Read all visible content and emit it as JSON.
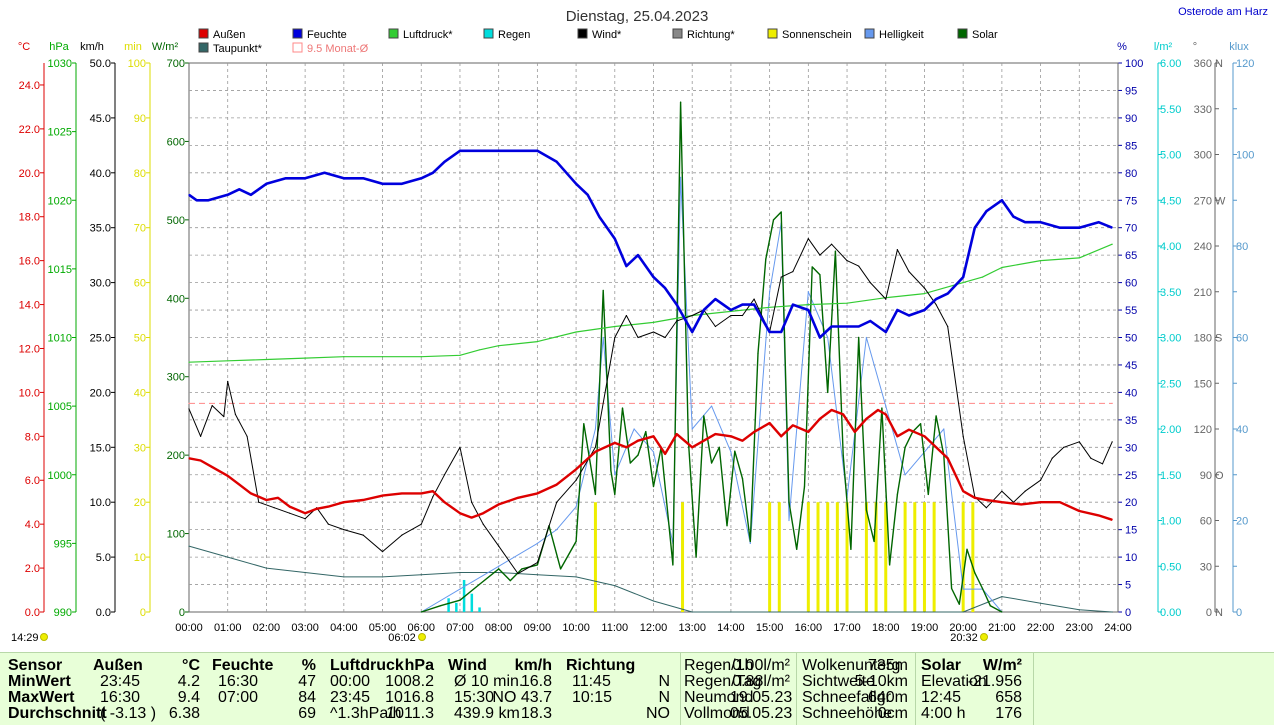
{
  "title": "Dienstag, 25.04.2023",
  "location": "Osterode am Harz",
  "legend": [
    {
      "label": "Außen",
      "color": "#dd0000"
    },
    {
      "label": "Feuchte",
      "color": "#0000dd"
    },
    {
      "label": "Luftdruck*",
      "color": "#33cc33"
    },
    {
      "label": "Regen",
      "color": "#00dddd"
    },
    {
      "label": "Wind*",
      "color": "#000000"
    },
    {
      "label": "Richtung*",
      "color": "#888888"
    },
    {
      "label": "Sonnenschein",
      "color": "#eeee00"
    },
    {
      "label": "Helligkeit",
      "color": "#6699ee"
    },
    {
      "label": "Solar",
      "color": "#006600"
    },
    {
      "label": "Taupunkt*",
      "color": "#336666"
    },
    {
      "label": "9.5 Monat-Ø",
      "color": "#ff8888"
    }
  ],
  "axes": {
    "temp": {
      "unit": "°C",
      "ticks": [
        "24.0",
        "22.0",
        "20.0",
        "18.0",
        "16.0",
        "14.0",
        "12.0",
        "10.0",
        "8.0",
        "6.0",
        "4.0",
        "2.0",
        "0.0"
      ],
      "color": "#dd0000"
    },
    "pressure": {
      "unit": "hPa",
      "ticks": [
        "1030",
        "1025",
        "1020",
        "1015",
        "1010",
        "1005",
        "1000",
        "995",
        "990"
      ],
      "color": "#00aa00"
    },
    "wind": {
      "unit": "km/h",
      "ticks": [
        "50.0",
        "45.0",
        "40.0",
        "35.0",
        "30.0",
        "25.0",
        "20.0",
        "15.0",
        "10.0",
        "5.0",
        "0.0"
      ],
      "color": "#000000"
    },
    "sunmin": {
      "unit": "min",
      "ticks": [
        "100",
        "90",
        "80",
        "70",
        "60",
        "50",
        "40",
        "30",
        "20",
        "10",
        "0"
      ],
      "color": "#dddd00"
    },
    "solar": {
      "unit": "W/m²",
      "ticks": [
        "700",
        "600",
        "500",
        "400",
        "300",
        "200",
        "100",
        "0"
      ],
      "color": "#006600"
    },
    "humidity": {
      "unit": "%",
      "ticks": [
        "100",
        "95",
        "90",
        "85",
        "80",
        "75",
        "70",
        "65",
        "60",
        "55",
        "50",
        "45",
        "40",
        "35",
        "30",
        "25",
        "20",
        "15",
        "10",
        "5",
        "0"
      ],
      "color": "#0000aa"
    },
    "rain": {
      "unit": "l/m²",
      "ticks": [
        "6.00",
        "5.50",
        "5.00",
        "4.50",
        "4.00",
        "3.50",
        "3.00",
        "2.50",
        "2.00",
        "1.50",
        "1.00",
        "0.50",
        "0.00"
      ],
      "color": "#00cccc"
    },
    "direction": {
      "unit": "°",
      "ticks": [
        "360",
        "330",
        "300",
        "270",
        "240",
        "210",
        "180",
        "150",
        "120",
        "90",
        "60",
        "30",
        "0"
      ],
      "color": "#666666"
    },
    "compass": {
      "ticks": [
        "N",
        "",
        "",
        "W",
        "",
        "",
        "S",
        "",
        "",
        "O",
        "",
        "",
        "N"
      ]
    },
    "lux": {
      "unit": "klux",
      "ticks": [
        "120",
        "",
        "100",
        "",
        "80",
        "",
        "60",
        "",
        "40",
        "",
        "20",
        "",
        "0"
      ],
      "color": "#5599cc"
    }
  },
  "x_ticks": [
    "00:00",
    "01:00",
    "02:00",
    "03:00",
    "04:00",
    "05:00",
    "06:00",
    "07:00",
    "08:00",
    "09:00",
    "10:00",
    "11:00",
    "12:00",
    "13:00",
    "14:00",
    "15:00",
    "16:00",
    "17:00",
    "18:00",
    "19:00",
    "20:00",
    "21:00",
    "22:00",
    "23:00",
    "24:00"
  ],
  "sunrise": "06:02",
  "sunset": "20:32",
  "sunshine_duration": "14:29",
  "chart_data": {
    "type": "line",
    "x_unit": "hours",
    "xlim": [
      0,
      24
    ],
    "series": [
      {
        "name": "Außen",
        "unit": "°C",
        "ylim": [
          0,
          25
        ],
        "color": "#dd0000",
        "x": [
          0,
          0.3,
          0.6,
          1.0,
          1.3,
          1.6,
          2.0,
          2.3,
          2.6,
          3.0,
          3.3,
          3.6,
          4.0,
          4.5,
          5.0,
          5.5,
          6.0,
          6.3,
          6.6,
          7.0,
          7.3,
          7.6,
          8.0,
          8.5,
          9.0,
          9.5,
          10.0,
          10.5,
          11.0,
          11.3,
          11.6,
          12.0,
          12.3,
          12.6,
          13.0,
          13.3,
          13.6,
          14.0,
          14.3,
          14.6,
          15.0,
          15.3,
          15.6,
          16.0,
          16.3,
          16.6,
          16.9,
          17.2,
          17.5,
          17.8,
          18.0,
          18.3,
          18.6,
          19.0,
          19.3,
          19.6,
          20.0,
          20.3,
          20.6,
          21.0,
          21.5,
          22.0,
          22.5,
          23.0,
          23.5,
          23.85
        ],
        "values": [
          7.0,
          6.9,
          6.6,
          6.2,
          5.8,
          5.4,
          5.1,
          5.2,
          4.8,
          4.5,
          4.7,
          4.8,
          5.0,
          5.1,
          5.3,
          5.4,
          5.4,
          5.5,
          5.0,
          4.5,
          4.3,
          4.5,
          4.9,
          5.2,
          5.4,
          5.8,
          6.5,
          7.3,
          7.7,
          7.5,
          7.8,
          8.0,
          7.2,
          8.1,
          7.5,
          7.8,
          8.1,
          8.0,
          7.8,
          8.2,
          8.6,
          8.0,
          8.5,
          8.2,
          8.8,
          9.2,
          9.0,
          8.2,
          8.8,
          9.2,
          9.0,
          8.0,
          8.3,
          8.0,
          7.5,
          7.0,
          5.5,
          5.2,
          5.1,
          5.0,
          4.9,
          5.0,
          5.0,
          4.6,
          4.4,
          4.2
        ]
      },
      {
        "name": "Feuchte",
        "unit": "%",
        "ylim": [
          0,
          100
        ],
        "color": "#0000dd",
        "x": [
          0,
          0.2,
          0.5,
          1.0,
          1.3,
          1.6,
          2.0,
          2.5,
          3.0,
          3.5,
          4.0,
          4.5,
          5.0,
          5.5,
          6.0,
          6.3,
          6.6,
          7.0,
          7.5,
          8.0,
          8.5,
          9.0,
          9.5,
          10.0,
          10.3,
          10.6,
          11.0,
          11.3,
          11.6,
          12.0,
          12.3,
          12.6,
          13.0,
          13.3,
          13.6,
          14.0,
          14.3,
          14.6,
          15.0,
          15.3,
          15.6,
          16.0,
          16.3,
          16.6,
          17.0,
          17.3,
          17.6,
          18.0,
          18.3,
          18.6,
          19.0,
          19.3,
          19.6,
          20.0,
          20.3,
          20.6,
          21.0,
          21.3,
          21.6,
          22.0,
          22.5,
          23.0,
          23.5,
          23.85
        ],
        "values": [
          76,
          75,
          75,
          76,
          77,
          76,
          78,
          79,
          79,
          80,
          79,
          79,
          78,
          78,
          79,
          80,
          82,
          84,
          84,
          84,
          84,
          84,
          82,
          78,
          76,
          72,
          68,
          63,
          65,
          61,
          59,
          56,
          51,
          55,
          57,
          55,
          56,
          56,
          51,
          51,
          56,
          55,
          50,
          52,
          52,
          52,
          53,
          51,
          55,
          54,
          55,
          57,
          58,
          61,
          70,
          73,
          75,
          72,
          71,
          71,
          70,
          70,
          71,
          70
        ]
      },
      {
        "name": "Luftdruck",
        "unit": "hPa",
        "ylim": [
          990,
          1030
        ],
        "color": "#33cc33",
        "x": [
          0,
          1,
          2,
          3,
          4,
          5,
          6,
          7,
          7.5,
          8,
          9,
          10,
          11,
          12,
          13,
          14,
          15,
          16,
          17,
          18,
          19,
          20,
          20.5,
          21,
          22,
          23,
          23.85
        ],
        "values": [
          1008.2,
          1008.3,
          1008.4,
          1008.5,
          1008.6,
          1008.6,
          1008.6,
          1008.7,
          1009.1,
          1009.4,
          1009.7,
          1010.4,
          1010.8,
          1011.1,
          1011.6,
          1011.9,
          1012.2,
          1012.4,
          1012.5,
          1012.9,
          1013.2,
          1014.0,
          1014.4,
          1015.1,
          1015.6,
          1015.8,
          1016.8
        ]
      },
      {
        "name": "Regen",
        "unit": "l/m²",
        "ylim": [
          0,
          6
        ],
        "color": "#00dddd",
        "x": [
          6.7,
          6.9,
          7.1,
          7.3,
          7.5
        ],
        "values": [
          0.15,
          0.1,
          0.35,
          0.2,
          0.05
        ]
      },
      {
        "name": "Wind",
        "unit": "km/h",
        "ylim": [
          0,
          50
        ],
        "color": "#000000",
        "x": [
          0,
          0.3,
          0.6,
          0.9,
          1.0,
          1.2,
          1.5,
          1.8,
          2.2,
          2.6,
          3.0,
          3.3,
          3.6,
          4.0,
          4.5,
          5.0,
          5.5,
          6.0,
          6.3,
          6.6,
          7.0,
          7.3,
          7.6,
          8.0,
          8.5,
          9.0,
          9.5,
          10.0,
          10.5,
          11.0,
          11.3,
          11.6,
          12.0,
          12.3,
          12.6,
          13.0,
          13.3,
          13.6,
          14.0,
          14.3,
          14.6,
          15.0,
          15.3,
          15.6,
          16.0,
          16.3,
          16.6,
          17.0,
          17.3,
          17.6,
          18.0,
          18.3,
          18.6,
          19.0,
          19.3,
          19.6,
          20.0,
          20.3,
          20.6,
          21.0,
          21.3,
          21.6,
          22.0,
          22.3,
          22.6,
          23.0,
          23.3,
          23.6,
          23.85
        ],
        "values": [
          18.5,
          16.0,
          18.8,
          17.8,
          21.0,
          18.0,
          16.0,
          10.0,
          9.5,
          9.0,
          8.5,
          9.5,
          8.0,
          7.5,
          7.0,
          5.5,
          7.0,
          8.0,
          10.5,
          12.5,
          15.0,
          10.0,
          8.0,
          6.0,
          3.5,
          4.5,
          10.0,
          12.0,
          15.0,
          25.0,
          27.0,
          25.0,
          25.5,
          25.0,
          26.5,
          27.0,
          27.5,
          26.0,
          27.0,
          27.0,
          28.5,
          25.5,
          30.5,
          31.0,
          34.0,
          32.5,
          33.5,
          32.0,
          31.5,
          30.0,
          28.5,
          33.0,
          31.0,
          29.5,
          28.0,
          26.0,
          16.0,
          10.5,
          9.5,
          11.0,
          10.0,
          11.0,
          12.0,
          14.0,
          15.0,
          15.5,
          14.0,
          13.5,
          15.5
        ]
      },
      {
        "name": "Taupunkt",
        "unit": "°C",
        "ylim": [
          0,
          25
        ],
        "color": "#336666",
        "x": [
          0,
          1,
          2,
          3,
          4,
          5,
          6,
          7,
          8,
          9,
          10,
          11,
          12,
          13,
          14,
          15,
          16,
          17,
          18,
          19,
          20,
          21,
          22,
          23,
          23.85
        ],
        "values": [
          3.0,
          2.5,
          2.0,
          1.8,
          1.6,
          1.6,
          1.7,
          1.8,
          1.8,
          1.7,
          1.6,
          1.2,
          0.5,
          0.0,
          0.0,
          0.0,
          0.0,
          0.0,
          0.0,
          0.0,
          0.0,
          0.7,
          0.4,
          0.1,
          0.0
        ]
      },
      {
        "name": "9.5 Monat-Ø",
        "unit": "°C",
        "ylim": [
          0,
          25
        ],
        "color": "#ff8888",
        "x": [
          0,
          23.85
        ],
        "values": [
          9.5,
          9.5
        ]
      },
      {
        "name": "Solar",
        "unit": "W/m²",
        "ylim": [
          0,
          700
        ],
        "color": "#006600",
        "x": [
          6.0,
          6.5,
          7.0,
          7.5,
          8.0,
          8.3,
          8.6,
          9.0,
          9.3,
          9.6,
          10.0,
          10.2,
          10.5,
          10.7,
          10.9,
          11.0,
          11.2,
          11.4,
          11.6,
          11.8,
          12.0,
          12.2,
          12.5,
          12.7,
          12.9,
          13.1,
          13.3,
          13.5,
          13.7,
          13.9,
          14.1,
          14.3,
          14.5,
          14.7,
          14.9,
          15.1,
          15.3,
          15.5,
          15.7,
          15.9,
          16.1,
          16.3,
          16.5,
          16.7,
          16.9,
          17.1,
          17.3,
          17.5,
          17.7,
          17.9,
          18.1,
          18.3,
          18.5,
          18.7,
          18.9,
          19.1,
          19.3,
          19.5,
          19.7,
          19.9,
          20.1,
          20.3,
          20.5,
          20.7,
          21.0
        ],
        "values": [
          0,
          8,
          15,
          35,
          55,
          40,
          55,
          60,
          110,
          55,
          90,
          240,
          150,
          410,
          180,
          150,
          260,
          190,
          200,
          230,
          160,
          210,
          60,
          650,
          220,
          70,
          250,
          190,
          210,
          110,
          205,
          170,
          90,
          330,
          450,
          500,
          510,
          140,
          80,
          160,
          440,
          430,
          280,
          460,
          200,
          80,
          350,
          130,
          90,
          260,
          60,
          150,
          210,
          230,
          240,
          150,
          250,
          200,
          30,
          10,
          80,
          50,
          30,
          8,
          0
        ]
      },
      {
        "name": "Helligkeit",
        "unit": "klux",
        "ylim": [
          0,
          120
        ],
        "color": "#6699ee",
        "x": [
          6.0,
          7.0,
          8.0,
          9.0,
          9.5,
          10.0,
          10.5,
          10.7,
          11.0,
          11.5,
          12.0,
          12.5,
          12.7,
          13.0,
          13.5,
          14.0,
          14.5,
          15.0,
          15.3,
          15.5,
          16.0,
          16.5,
          17.0,
          17.5,
          18.0,
          18.5,
          19.0,
          19.5,
          20.0,
          20.5,
          21.0
        ],
        "values": [
          0,
          5,
          10,
          15,
          18,
          23,
          40,
          60,
          30,
          40,
          35,
          15,
          95,
          40,
          45,
          35,
          15,
          70,
          85,
          20,
          70,
          60,
          25,
          60,
          45,
          30,
          35,
          40,
          5,
          5,
          0
        ]
      }
    ],
    "sunshine_bars": {
      "unit": "min",
      "ylim": [
        0,
        100
      ],
      "color": "#eeee00",
      "x": [
        10.5,
        12.75,
        15.0,
        15.25,
        16.0,
        16.25,
        16.5,
        16.75,
        17.0,
        17.5,
        17.75,
        18.0,
        18.5,
        18.75,
        19.0,
        19.25,
        20.0,
        20.25
      ],
      "values": [
        20,
        20,
        20,
        20,
        20,
        20,
        20,
        20,
        20,
        20,
        20,
        20,
        20,
        20,
        20,
        20,
        20,
        20
      ]
    }
  },
  "stats": {
    "headers": {
      "sensor": "Sensor",
      "aussen": "Außen",
      "aussen_unit": "°C",
      "feuchte": "Feuchte",
      "feuchte_unit": "%",
      "luftdruck": "Luftdruck",
      "luftdruck_unit": "hPa",
      "wind": "Wind",
      "wind_unit": "km/h",
      "richtung": "Richtung"
    },
    "row_labels": [
      "MinWert",
      "MaxWert",
      "Durchschnitt"
    ],
    "aussen": [
      [
        "23:45",
        "4.2"
      ],
      [
        "16:30",
        "9.4"
      ],
      [
        "( -3.13 )",
        "6.38"
      ]
    ],
    "feuchte": [
      [
        "16:30",
        "47"
      ],
      [
        "07:00",
        "84"
      ],
      [
        "",
        "69"
      ]
    ],
    "luftdruck": [
      [
        "00:00",
        "1008.2"
      ],
      [
        "23:45",
        "1016.8"
      ],
      [
        "^1.3hPa/h",
        "1011.3"
      ]
    ],
    "wind": [
      [
        "Ø 10 min.",
        "16.8"
      ],
      [
        "15:30",
        "NO 43.7"
      ],
      [
        "439.9 km",
        "18.3"
      ]
    ],
    "richtung": [
      [
        "11:45",
        "N"
      ],
      [
        "10:15",
        "N"
      ],
      [
        "",
        "NO"
      ]
    ],
    "rain": [
      [
        "Regen/1h",
        "0.00l/m²"
      ],
      [
        "Regen/Tag",
        "0.88l/m²"
      ],
      [
        "Neumond",
        "19.05.23"
      ],
      [
        "Vollmond",
        "05.05.23"
      ]
    ],
    "weather": [
      [
        "Wolkenunterg",
        "735m"
      ],
      [
        "Sichtweite",
        "5-10km"
      ],
      [
        "Schneefallgr",
        "640m"
      ],
      [
        "Schneehöhe",
        "0cm"
      ]
    ],
    "solar_head": {
      "label": "Solar",
      "unit": "W/m²"
    },
    "solar": [
      [
        "Elevation",
        "-21.956"
      ],
      [
        "12:45",
        "658"
      ],
      [
        "4:00 h",
        "176"
      ]
    ]
  }
}
